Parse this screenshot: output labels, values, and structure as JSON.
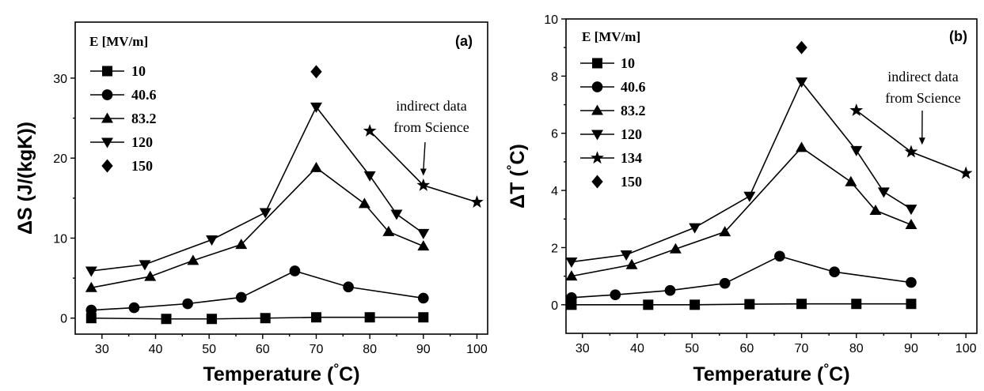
{
  "chart_data": [
    {
      "type": "line",
      "panel_label": "(a)",
      "xlabel": "Temperature (°C)",
      "ylabel": "ΔS (J/(kgK))",
      "xlim": [
        25,
        102
      ],
      "ylim": [
        -2,
        37
      ],
      "xticks": [
        30,
        40,
        50,
        60,
        70,
        80,
        90,
        100
      ],
      "yticks": [
        0,
        10,
        20,
        30
      ],
      "legend_title": "E [MV/m]",
      "legend_position": "top-left",
      "series": [
        {
          "name": "10",
          "marker": "square",
          "x": [
            28,
            42,
            50.5,
            60.5,
            70,
            80,
            90
          ],
          "y": [
            0,
            -0.1,
            -0.1,
            0,
            0.1,
            0.1,
            0.1
          ]
        },
        {
          "name": "40.6",
          "marker": "circle",
          "x": [
            28,
            36,
            46,
            56,
            66,
            76,
            90
          ],
          "y": [
            1,
            1.3,
            1.8,
            2.6,
            5.9,
            3.9,
            2.5
          ]
        },
        {
          "name": "83.2",
          "marker": "triangle-up",
          "x": [
            28,
            39,
            47,
            56,
            70,
            79,
            83.5,
            90
          ],
          "y": [
            3.8,
            5.2,
            7.2,
            9.2,
            18.8,
            14.3,
            10.8,
            9
          ]
        },
        {
          "name": "120",
          "marker": "triangle-down",
          "x": [
            28,
            38,
            50.5,
            60.5,
            70,
            80,
            85,
            90
          ],
          "y": [
            5.9,
            6.7,
            9.8,
            13.2,
            26.4,
            17.8,
            13,
            10.6
          ]
        },
        {
          "name": "150",
          "marker": "diamond",
          "x": [
            70
          ],
          "y": [
            30.8
          ]
        }
      ],
      "extra_series": [
        {
          "marker": "star",
          "x": [
            80,
            90,
            100
          ],
          "y": [
            23.4,
            16.6,
            14.5
          ]
        }
      ],
      "annotation": {
        "lines": [
          "indirect data",
          "from Science"
        ],
        "arrow_to": [
          90,
          17.8
        ]
      }
    },
    {
      "type": "line",
      "panel_label": "(b)",
      "xlabel": "Temperature (°C)",
      "ylabel": "ΔT (°C)",
      "xlim": [
        27,
        102
      ],
      "ylim": [
        -1,
        10
      ],
      "xticks": [
        30,
        40,
        50,
        60,
        70,
        80,
        90,
        100
      ],
      "yticks": [
        0,
        2,
        4,
        6,
        8,
        10
      ],
      "legend_title": "E [MV/m]",
      "legend_position": "top-left",
      "series": [
        {
          "name": "10",
          "marker": "square",
          "x": [
            28,
            42,
            50.5,
            60.5,
            70,
            80,
            90
          ],
          "y": [
            0,
            0,
            0,
            0.02,
            0.03,
            0.03,
            0.03
          ]
        },
        {
          "name": "40.6",
          "marker": "circle",
          "x": [
            28,
            36,
            46,
            56,
            66,
            76,
            90
          ],
          "y": [
            0.25,
            0.35,
            0.5,
            0.75,
            1.7,
            1.15,
            0.78
          ]
        },
        {
          "name": "83.2",
          "marker": "triangle-up",
          "x": [
            28,
            39,
            47,
            56,
            70,
            79,
            83.5,
            90
          ],
          "y": [
            1,
            1.4,
            1.95,
            2.55,
            5.5,
            4.3,
            3.3,
            2.8
          ]
        },
        {
          "name": "120",
          "marker": "triangle-down",
          "x": [
            28,
            38,
            50.5,
            60.5,
            70,
            80,
            85,
            90
          ],
          "y": [
            1.5,
            1.75,
            2.7,
            3.8,
            7.8,
            5.4,
            3.95,
            3.35
          ]
        },
        {
          "name": "134",
          "marker": "star",
          "x": [
            80,
            90,
            100
          ],
          "y": [
            6.8,
            5.35,
            4.6
          ]
        },
        {
          "name": "150",
          "marker": "diamond",
          "x": [
            70
          ],
          "y": [
            9
          ]
        }
      ],
      "annotation": {
        "lines": [
          "indirect data",
          "from Science"
        ],
        "arrow_to": [
          92,
          5.6
        ]
      }
    }
  ]
}
